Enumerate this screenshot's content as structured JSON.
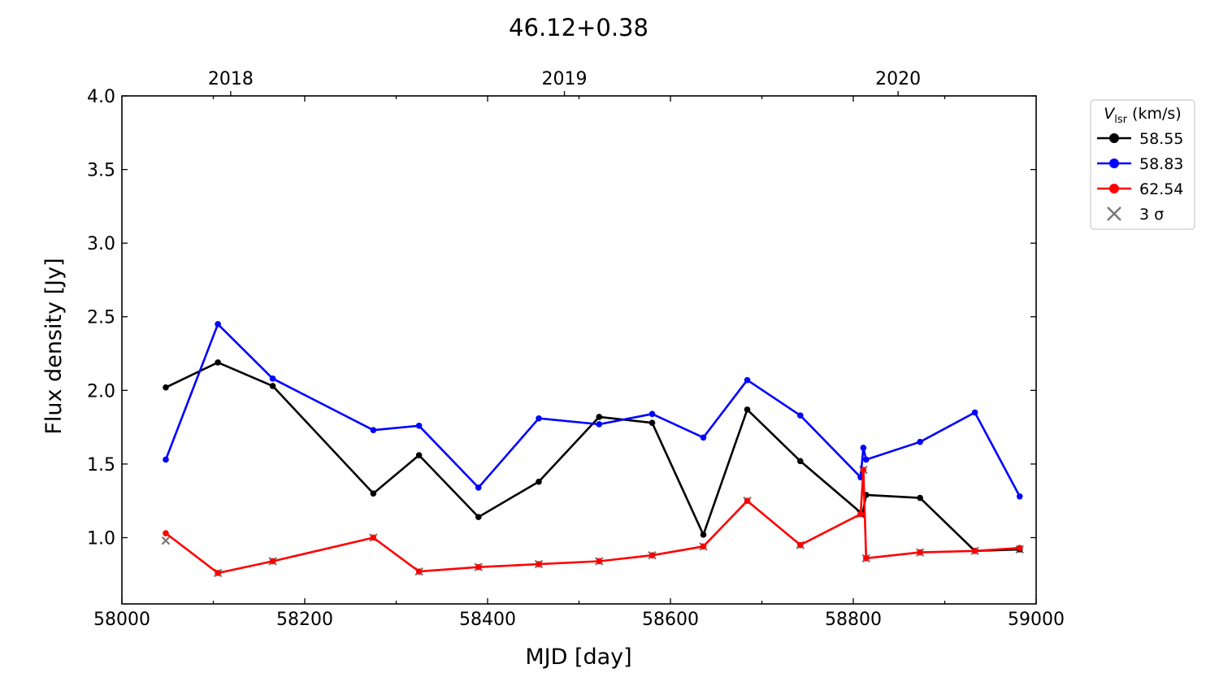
{
  "chart_data": {
    "type": "line",
    "title": "46.12+0.38",
    "xlabel": "MJD [day]",
    "ylabel": "Flux density [Jy]",
    "xlim": [
      58000,
      59000
    ],
    "ylim": [
      0.55,
      4.0
    ],
    "xticks": [
      58000,
      58200,
      58400,
      58600,
      58800,
      59000
    ],
    "yticks": [
      1.0,
      1.5,
      2.0,
      2.5,
      3.0,
      3.5,
      4.0
    ],
    "ytick_labels": [
      "1.0",
      "1.5",
      "2.0",
      "2.5",
      "3.0",
      "3.5",
      "4.0"
    ],
    "top_axis": {
      "ticks": [
        {
          "mjd": 58119,
          "label": "2018"
        },
        {
          "mjd": 58484,
          "label": "2019"
        },
        {
          "mjd": 58849,
          "label": "2020"
        }
      ]
    },
    "legend": {
      "title_symbol": "V",
      "title_subscript": "lsr",
      "title_rest": " (km/s)",
      "position": "outside-upper-right"
    },
    "series": [
      {
        "name": "58.55",
        "color": "#000000",
        "x": [
          58048,
          58105,
          58165,
          58275,
          58325,
          58390,
          58456,
          58522,
          58580,
          58636,
          58684,
          58742,
          58810,
          58814,
          58873,
          58933,
          58982
        ],
        "y": [
          2.02,
          2.19,
          2.03,
          1.3,
          1.56,
          1.14,
          1.38,
          1.82,
          1.78,
          1.02,
          1.87,
          1.52,
          1.16,
          1.29,
          1.27,
          0.91,
          0.92
        ]
      },
      {
        "name": "58.83",
        "color": "#0000ff",
        "x": [
          58048,
          58105,
          58165,
          58275,
          58325,
          58390,
          58456,
          58522,
          58580,
          58636,
          58684,
          58742,
          58808,
          58811,
          58814,
          58873,
          58933,
          58982
        ],
        "y": [
          1.53,
          2.45,
          2.08,
          1.73,
          1.76,
          1.34,
          1.81,
          1.77,
          1.84,
          1.68,
          2.07,
          1.83,
          1.41,
          1.61,
          1.53,
          1.65,
          1.85,
          1.28
        ]
      },
      {
        "name": "62.54",
        "color": "#ff0000",
        "x": [
          58048,
          58105,
          58165,
          58275,
          58325,
          58390,
          58456,
          58522,
          58580,
          58636,
          58684,
          58742,
          58808,
          58811,
          58814,
          58873,
          58933,
          58982
        ],
        "y": [
          1.03,
          0.76,
          0.84,
          1.0,
          0.77,
          0.8,
          0.82,
          0.84,
          0.88,
          0.94,
          1.25,
          0.95,
          1.16,
          1.46,
          0.86,
          0.9,
          0.91,
          0.93
        ]
      }
    ],
    "sigma3": {
      "name": "3 σ",
      "color": "#777777",
      "x": [
        58048,
        58105,
        58165,
        58275,
        58325,
        58390,
        58456,
        58522,
        58580,
        58636,
        58684,
        58742,
        58808,
        58811,
        58814,
        58873,
        58933,
        58982
      ],
      "y": [
        0.98,
        0.76,
        0.84,
        1.0,
        0.77,
        0.8,
        0.82,
        0.84,
        0.88,
        0.94,
        1.25,
        0.95,
        1.16,
        1.46,
        0.86,
        0.9,
        0.91,
        0.92
      ]
    }
  }
}
